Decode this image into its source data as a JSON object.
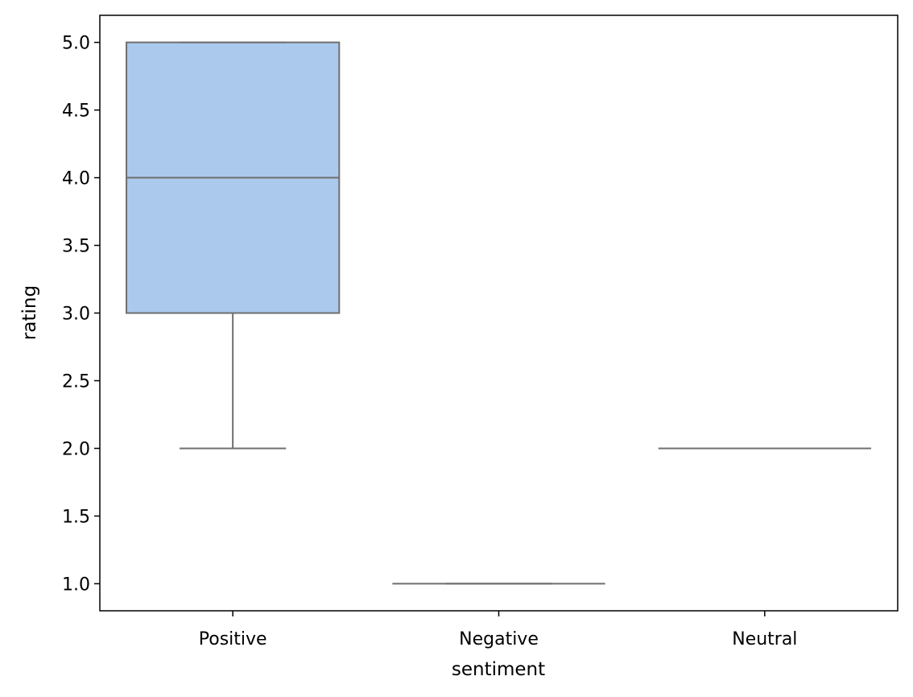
{
  "chart_data": {
    "type": "box",
    "title": "",
    "xlabel": "sentiment",
    "ylabel": "rating",
    "ylim": [
      0.8,
      5.2
    ],
    "yticks": [
      "1.0",
      "1.5",
      "2.0",
      "2.5",
      "3.0",
      "3.5",
      "4.0",
      "4.5",
      "5.0"
    ],
    "categories": [
      "Positive",
      "Negative",
      "Neutral"
    ],
    "boxes": [
      {
        "category": "Positive",
        "whisker_low": 2.0,
        "q1": 3.0,
        "median": 4.0,
        "q3": 5.0,
        "whisker_high": 5.0,
        "color": "#abc9ed"
      },
      {
        "category": "Negative",
        "whisker_low": 1.0,
        "q1": 1.0,
        "median": 1.0,
        "q3": 1.0,
        "whisker_high": 1.0,
        "color": "#f7b589"
      },
      {
        "category": "Neutral",
        "whisker_low": 2.0,
        "q1": 2.0,
        "median": 2.0,
        "q3": 2.0,
        "whisker_high": 2.0,
        "color": "#9fdba4"
      }
    ],
    "grid": false,
    "colors": {
      "line": "#6f6f6f",
      "axis": "#000000",
      "background": "#ffffff"
    }
  }
}
